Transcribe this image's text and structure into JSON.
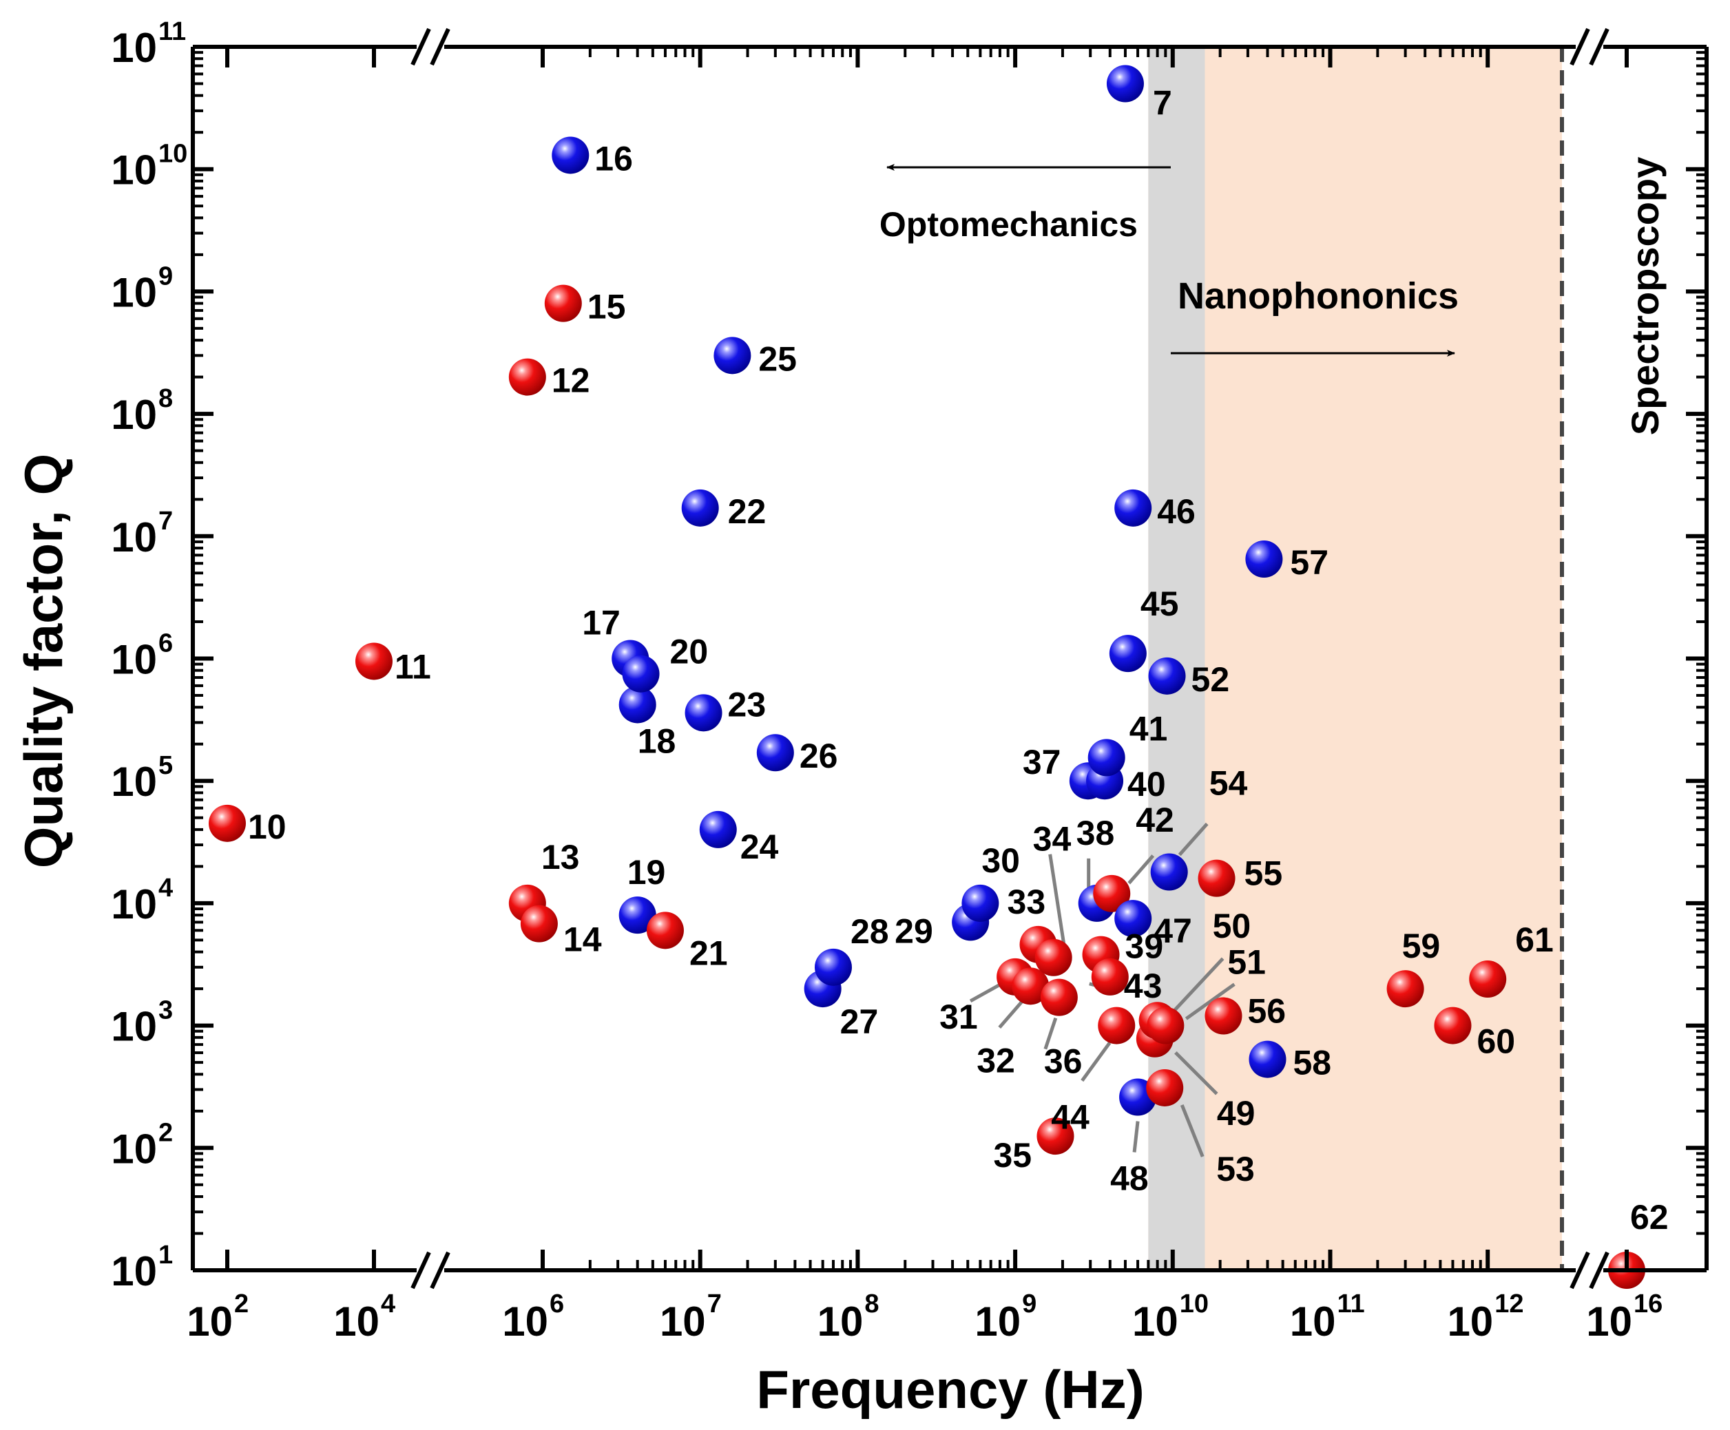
{
  "chart_data": {
    "type": "scatter",
    "xlabel": "Frequency (Hz)",
    "ylabel": "Quality factor, Q",
    "x_scale": "log",
    "y_scale": "log",
    "x_axis_broken": true,
    "xlim": [
      100.0,
      1e+16
    ],
    "ylim": [
      10,
      100000000000.0
    ],
    "x_ticks": [
      {
        "base": "10",
        "exp": "2",
        "value": 100.0
      },
      {
        "base": "10",
        "exp": "4",
        "value": 10000.0
      },
      {
        "base": "10",
        "exp": "6",
        "value": 1000000.0
      },
      {
        "base": "10",
        "exp": "7",
        "value": 10000000.0
      },
      {
        "base": "10",
        "exp": "8",
        "value": 100000000.0
      },
      {
        "base": "10",
        "exp": "9",
        "value": 1000000000.0
      },
      {
        "base": "10",
        "exp": "10",
        "value": 10000000000.0
      },
      {
        "base": "10",
        "exp": "11",
        "value": 100000000000.0
      },
      {
        "base": "10",
        "exp": "12",
        "value": 1000000000000.0
      },
      {
        "base": "10",
        "exp": "16",
        "value": 1e+16
      }
    ],
    "y_ticks": [
      {
        "base": "10",
        "exp": "1",
        "value": 10.0
      },
      {
        "base": "10",
        "exp": "2",
        "value": 100.0
      },
      {
        "base": "10",
        "exp": "3",
        "value": 1000.0
      },
      {
        "base": "10",
        "exp": "4",
        "value": 10000.0
      },
      {
        "base": "10",
        "exp": "5",
        "value": 100000.0
      },
      {
        "base": "10",
        "exp": "6",
        "value": 1000000.0
      },
      {
        "base": "10",
        "exp": "7",
        "value": 10000000.0
      },
      {
        "base": "10",
        "exp": "8",
        "value": 100000000.0
      },
      {
        "base": "10",
        "exp": "9",
        "value": 1000000000.0
      },
      {
        "base": "10",
        "exp": "10",
        "value": 10000000000.0
      },
      {
        "base": "10",
        "exp": "11",
        "value": 100000000000.0
      }
    ],
    "regions": {
      "nanophononics": {
        "label": "Nanophononics",
        "x_range": [
          7000000000.0,
          3000000000000.0
        ],
        "color": "#fce3d1"
      },
      "overlap": {
        "x_range": [
          7000000000.0,
          16000000000.0
        ],
        "color": "#d8d8d8"
      },
      "spectroscopy": {
        "label": "Spectropscopy",
        "boundary_x": 3000000000000.0
      }
    },
    "annotations": [
      {
        "text": "Optomechanics",
        "arrow": "left"
      },
      {
        "text": "Nanophononics",
        "arrow": "right"
      }
    ],
    "colors": {
      "red": "#e00000",
      "blue": "#1010e0",
      "leader": "#808080",
      "arrow": "#000000"
    },
    "points": [
      {
        "label": "7",
        "x": 5000000000.0,
        "y": 50000000000.0,
        "color": "blue"
      },
      {
        "label": "10",
        "x": 100.0,
        "y": 45000.0,
        "color": "red"
      },
      {
        "label": "11",
        "x": 10000.0,
        "y": 950000.0,
        "color": "red"
      },
      {
        "label": "12",
        "x": 800000.0,
        "y": 200000000.0,
        "color": "red"
      },
      {
        "label": "13",
        "x": 800000.0,
        "y": 10000.0,
        "color": "red"
      },
      {
        "label": "14",
        "x": 950000.0,
        "y": 6800.0,
        "color": "red"
      },
      {
        "label": "15",
        "x": 1350000.0,
        "y": 800000000.0,
        "color": "red"
      },
      {
        "label": "16",
        "x": 1500000.0,
        "y": 13000000000.0,
        "color": "blue"
      },
      {
        "label": "17",
        "x": 3600000.0,
        "y": 1000000.0,
        "color": "blue"
      },
      {
        "label": "18",
        "x": 4000000.0,
        "y": 420000.0,
        "color": "blue"
      },
      {
        "label": "19",
        "x": 4000000.0,
        "y": 8000.0,
        "color": "blue"
      },
      {
        "label": "20",
        "x": 4200000.0,
        "y": 750000.0,
        "color": "blue"
      },
      {
        "label": "21",
        "x": 6000000.0,
        "y": 6000.0,
        "color": "red"
      },
      {
        "label": "22",
        "x": 10000000.0,
        "y": 17000000.0,
        "color": "blue"
      },
      {
        "label": "23",
        "x": 10500000.0,
        "y": 360000.0,
        "color": "blue"
      },
      {
        "label": "24",
        "x": 13000000.0,
        "y": 40000.0,
        "color": "blue"
      },
      {
        "label": "25",
        "x": 16000000.0,
        "y": 300000000.0,
        "color": "blue"
      },
      {
        "label": "26",
        "x": 30000000.0,
        "y": 170000.0,
        "color": "blue"
      },
      {
        "label": "27",
        "x": 60000000.0,
        "y": 2000.0,
        "color": "blue"
      },
      {
        "label": "28",
        "x": 70000000.0,
        "y": 3000.0,
        "color": "blue"
      },
      {
        "label": "29",
        "x": 520000000.0,
        "y": 7000.0,
        "color": "blue"
      },
      {
        "label": "30",
        "x": 600000000.0,
        "y": 10000.0,
        "color": "blue"
      },
      {
        "label": "31",
        "x": 1000000000.0,
        "y": 2500.0,
        "color": "red"
      },
      {
        "label": "32",
        "x": 1250000000.0,
        "y": 2100.0,
        "color": "red"
      },
      {
        "label": "33",
        "x": 1400000000.0,
        "y": 4600.0,
        "color": "red"
      },
      {
        "label": "34",
        "x": 1750000000.0,
        "y": 3600.0,
        "color": "red"
      },
      {
        "label": "35",
        "x": 1800000000.0,
        "y": 125.0,
        "color": "red"
      },
      {
        "label": "36",
        "x": 1900000000.0,
        "y": 1700.0,
        "color": "red"
      },
      {
        "label": "37",
        "x": 2900000000.0,
        "y": 100000.0,
        "color": "blue"
      },
      {
        "label": "38",
        "x": 3300000000.0,
        "y": 10000.0,
        "color": "blue"
      },
      {
        "label": "39",
        "x": 3500000000.0,
        "y": 3800.0,
        "color": "red"
      },
      {
        "label": "40",
        "x": 3700000000.0,
        "y": 100000.0,
        "color": "blue"
      },
      {
        "label": "41",
        "x": 3800000000.0,
        "y": 155000.0,
        "color": "blue"
      },
      {
        "label": "42",
        "x": 4100000000.0,
        "y": 12000.0,
        "color": "red"
      },
      {
        "label": "43",
        "x": 4000000000.0,
        "y": 2500.0,
        "color": "red"
      },
      {
        "label": "44",
        "x": 4400000000.0,
        "y": 1000.0,
        "color": "red"
      },
      {
        "label": "45",
        "x": 5200000000.0,
        "y": 1100000.0,
        "color": "blue"
      },
      {
        "label": "46",
        "x": 5600000000.0,
        "y": 17000000.0,
        "color": "blue"
      },
      {
        "label": "47",
        "x": 5600000000.0,
        "y": 7500.0,
        "color": "blue"
      },
      {
        "label": "48",
        "x": 6000000000.0,
        "y": 260.0,
        "color": "blue"
      },
      {
        "label": "49",
        "x": 7700000000.0,
        "y": 780.0,
        "color": "red"
      },
      {
        "label": "50",
        "x": 8000000000.0,
        "y": 1100.0,
        "color": "red"
      },
      {
        "label": "51",
        "x": 9000000000.0,
        "y": 1000.0,
        "color": "red"
      },
      {
        "label": "52",
        "x": 9200000000.0,
        "y": 720000.0,
        "color": "blue"
      },
      {
        "label": "53",
        "x": 8900000000.0,
        "y": 310.0,
        "color": "red"
      },
      {
        "label": "54",
        "x": 9500000000.0,
        "y": 18000.0,
        "color": "blue"
      },
      {
        "label": "55",
        "x": 19000000000.0,
        "y": 16000.0,
        "color": "red"
      },
      {
        "label": "56",
        "x": 21000000000.0,
        "y": 1200.0,
        "color": "red"
      },
      {
        "label": "57",
        "x": 38000000000.0,
        "y": 6500000.0,
        "color": "blue"
      },
      {
        "label": "58",
        "x": 40000000000.0,
        "y": 530.0,
        "color": "blue"
      },
      {
        "label": "59",
        "x": 300000000000.0,
        "y": 2000.0,
        "color": "red"
      },
      {
        "label": "60",
        "x": 600000000000.0,
        "y": 1000.0,
        "color": "red"
      },
      {
        "label": "61",
        "x": 1000000000000.0,
        "y": 2400.0,
        "color": "red"
      },
      {
        "label": "62",
        "x": 1e+16,
        "y": 10.0,
        "color": "red"
      }
    ]
  }
}
